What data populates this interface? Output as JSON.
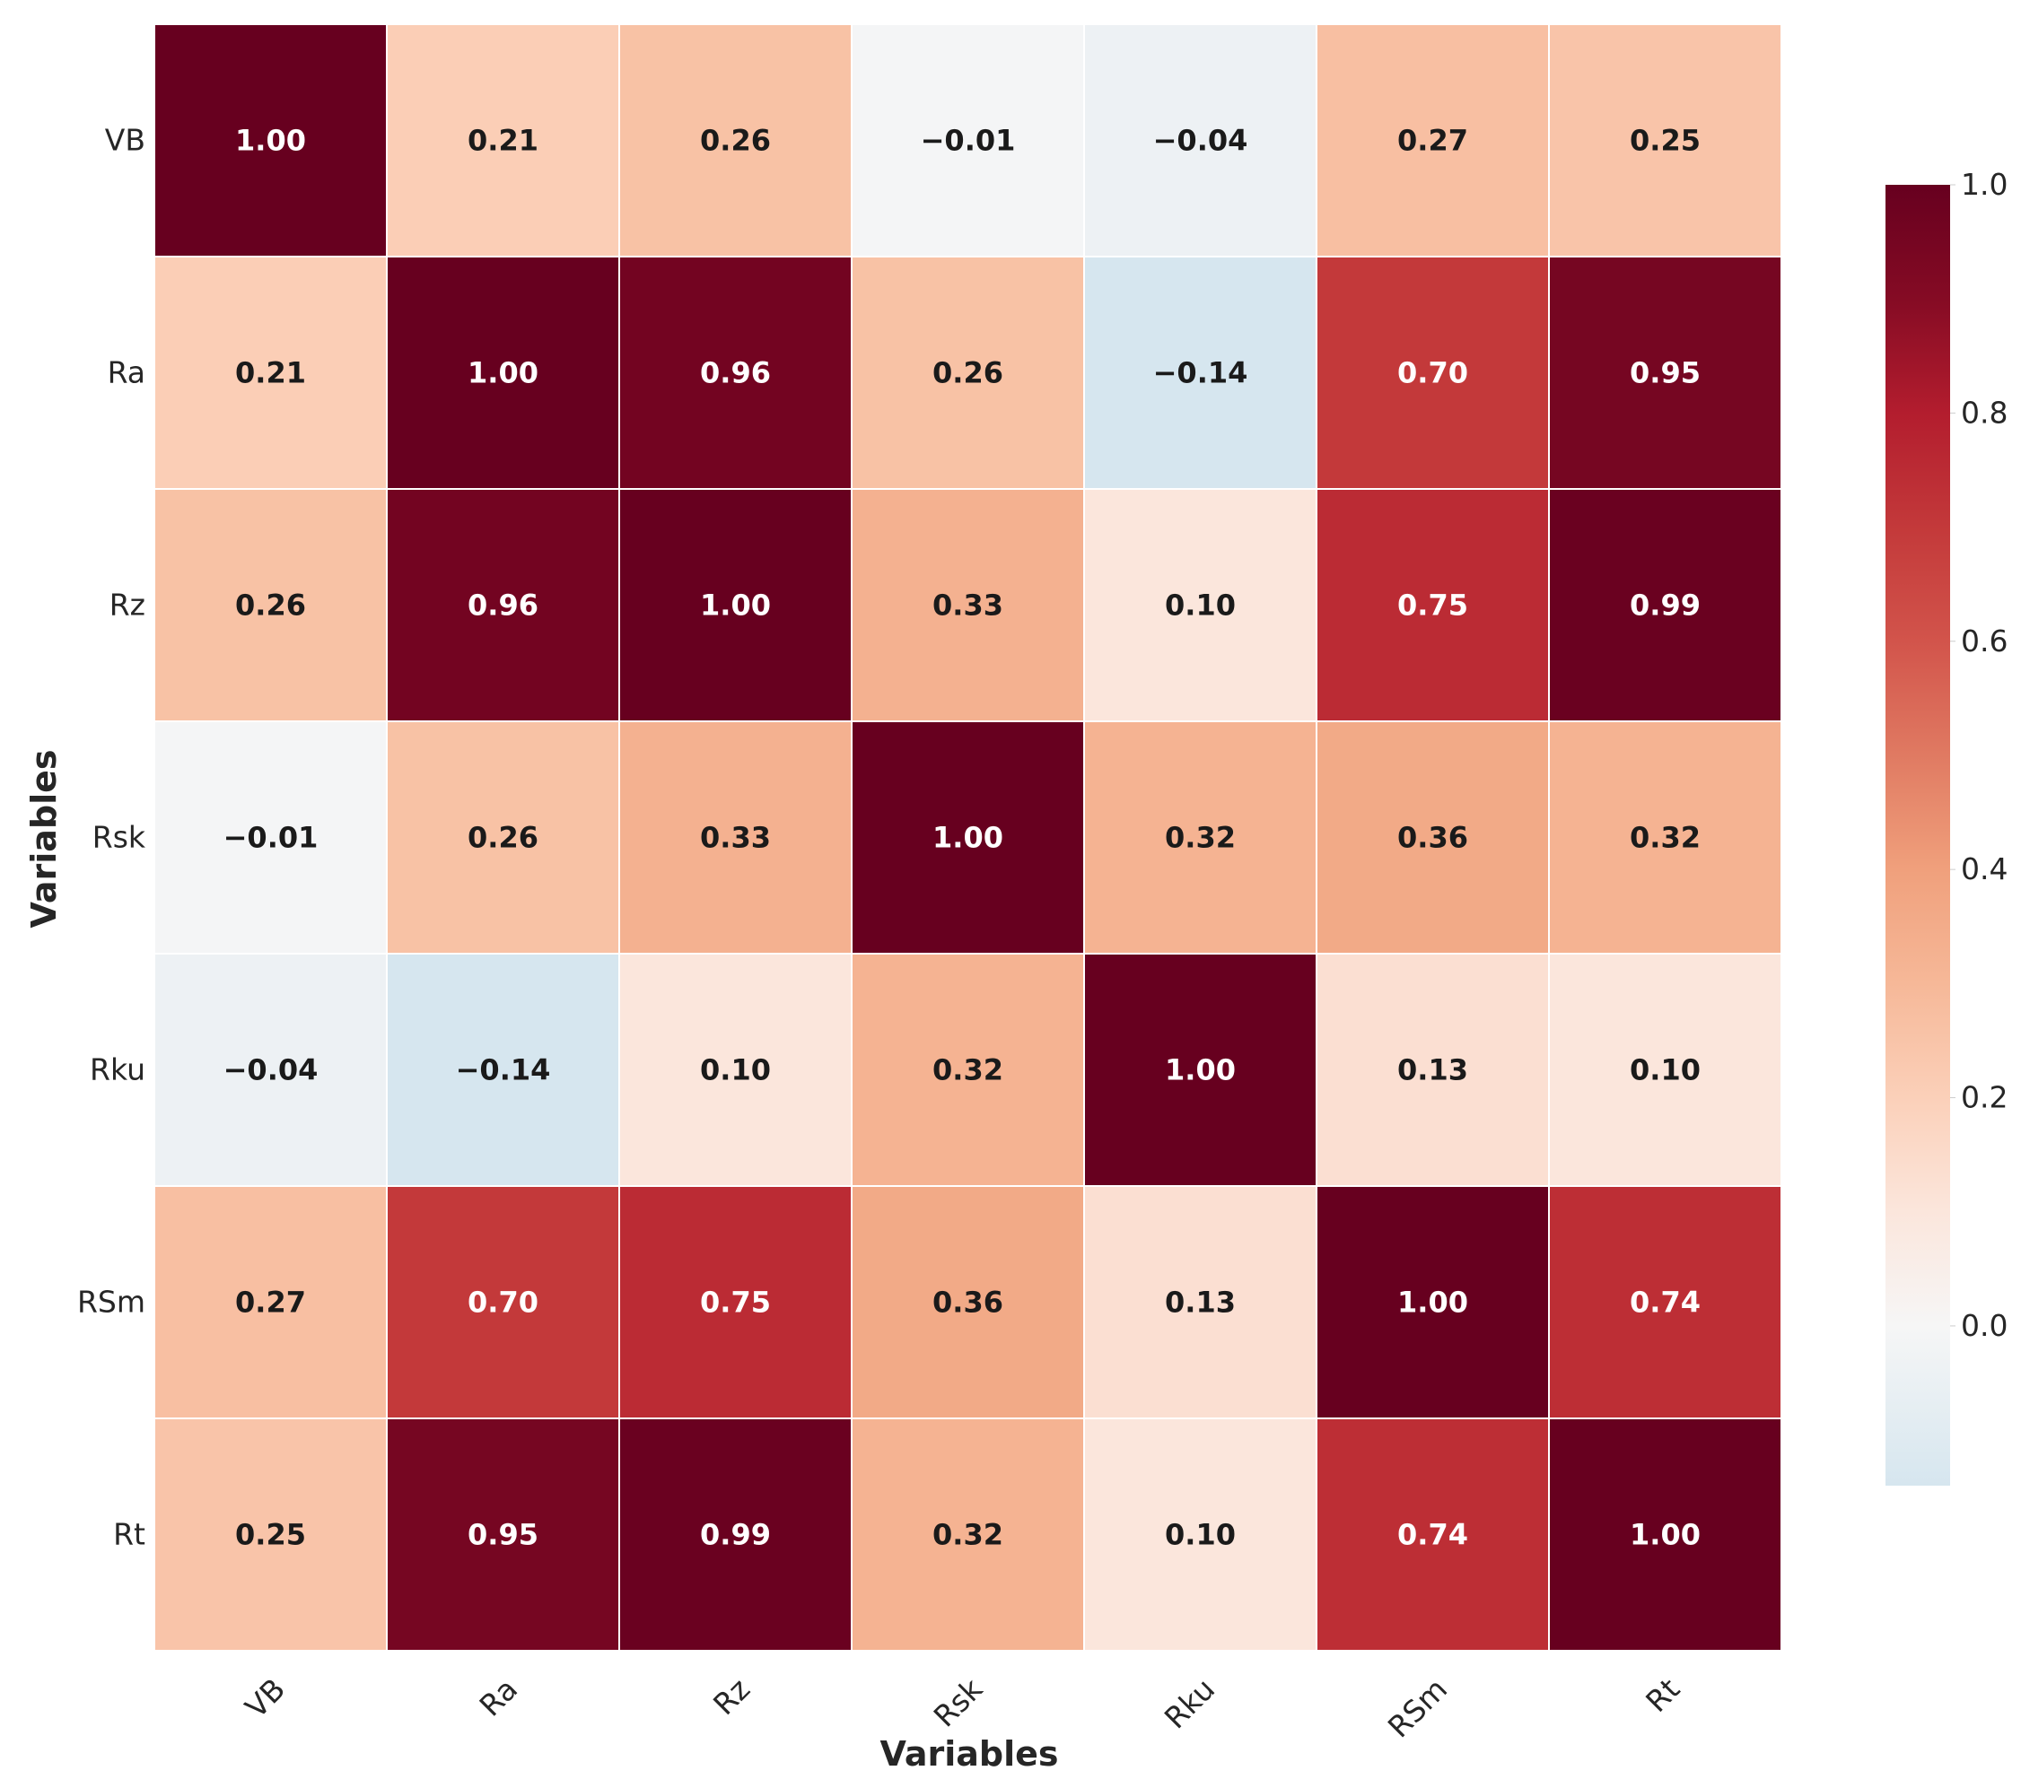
{
  "chart_data": {
    "type": "heatmap",
    "title": "",
    "xlabel": "Variables",
    "ylabel": "Variables",
    "x_categories": [
      "VB",
      "Ra",
      "Rz",
      "Rsk",
      "Rku",
      "RSm",
      "Rt"
    ],
    "y_categories": [
      "VB",
      "Ra",
      "Rz",
      "Rsk",
      "Rku",
      "RSm",
      "Rt"
    ],
    "values": [
      [
        1.0,
        0.21,
        0.26,
        -0.01,
        -0.04,
        0.27,
        0.25
      ],
      [
        0.21,
        1.0,
        0.96,
        0.26,
        -0.14,
        0.7,
        0.95
      ],
      [
        0.26,
        0.96,
        1.0,
        0.33,
        0.1,
        0.75,
        0.99
      ],
      [
        -0.01,
        0.26,
        0.33,
        1.0,
        0.32,
        0.36,
        0.32
      ],
      [
        -0.04,
        -0.14,
        0.1,
        0.32,
        1.0,
        0.13,
        0.1
      ],
      [
        0.27,
        0.7,
        0.75,
        0.36,
        0.13,
        1.0,
        0.74
      ],
      [
        0.25,
        0.95,
        0.99,
        0.32,
        0.1,
        0.74,
        1.0
      ]
    ],
    "value_format": "2 decimals",
    "colormap": "RdBu_r",
    "colorbar": {
      "range": [
        -0.14,
        1.0
      ],
      "ticks": [
        1.0,
        0.8,
        0.6,
        0.4,
        0.2,
        0.0
      ],
      "tick_labels": [
        "1.0",
        "0.8",
        "0.6",
        "0.4",
        "0.2",
        "0.0"
      ],
      "placement": "right"
    },
    "colors": {
      "stops": [
        {
          "v": -0.14,
          "c": "#d6e6ef"
        },
        {
          "v": 0.0,
          "c": "#f6f6f6"
        },
        {
          "v": 0.1,
          "c": "#fbe6dc"
        },
        {
          "v": 0.2,
          "c": "#fbd0b9"
        },
        {
          "v": 0.3,
          "c": "#f6b898"
        },
        {
          "v": 0.4,
          "c": "#f0a07c"
        },
        {
          "v": 0.5,
          "c": "#e07a62"
        },
        {
          "v": 0.6,
          "c": "#d2544b"
        },
        {
          "v": 0.7,
          "c": "#c3393a"
        },
        {
          "v": 0.8,
          "c": "#b31d2e"
        },
        {
          "v": 0.9,
          "c": "#850b24"
        },
        {
          "v": 1.0,
          "c": "#67001f"
        }
      ],
      "dark_text": "#1a1a1a",
      "light_text": "#ffffff",
      "grid_line": "#ffffff"
    }
  }
}
